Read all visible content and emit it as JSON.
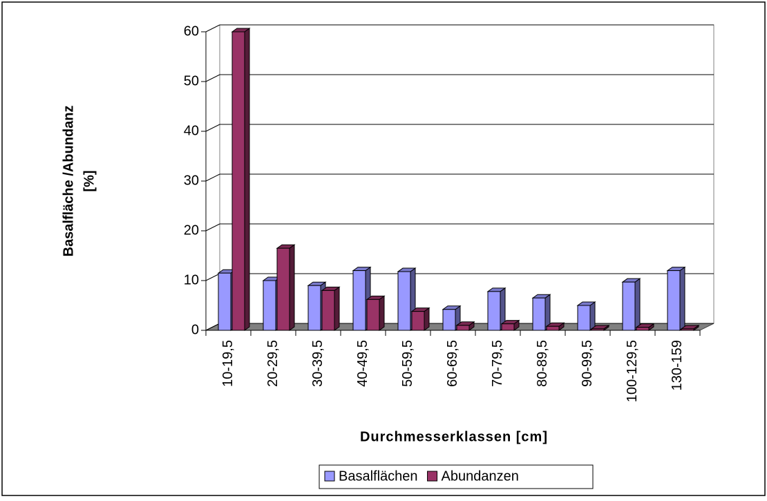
{
  "chart_data": {
    "type": "bar3d",
    "y_label": [
      "Basalfläche /Abundanz",
      "[%]"
    ],
    "x_label": "Durchmesserklassen [cm]",
    "categories": [
      "10-19,5",
      "20-29,5",
      "30-39,5",
      "40-49,5",
      "50-59,5",
      "60-69,5",
      "70-79,5",
      "80-89,5",
      "90-99,5",
      "100-129,5",
      "130-159"
    ],
    "series": [
      {
        "name": "Basalflächen",
        "color": "#9999ff",
        "values": [
          11.5,
          10,
          9,
          12,
          11.8,
          4.2,
          7.8,
          6.5,
          5,
          9.7,
          12
        ]
      },
      {
        "name": "Abundanzen",
        "color": "#993366",
        "values": [
          60,
          16.5,
          8,
          6.2,
          3.8,
          1,
          1.3,
          0.8,
          0.3,
          0.6,
          0.3
        ]
      }
    ],
    "ylim": [
      0,
      60
    ],
    "yticks": [
      0,
      10,
      20,
      30,
      40,
      50,
      60
    ],
    "grid": true,
    "legend": "bottom"
  }
}
